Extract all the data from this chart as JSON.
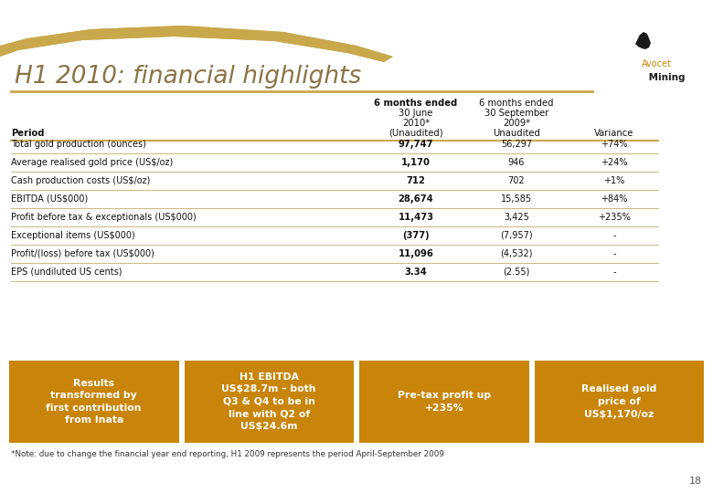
{
  "title": "H1 2010: financial highlights",
  "title_color": "#8B7345",
  "bg_color": "#FFFFFF",
  "slide_number": "18",
  "col_headers_line1": [
    "6 months ended",
    "6 months ended"
  ],
  "col_headers_line2": [
    "30 June",
    "30 September"
  ],
  "col_headers_line3": [
    "2010*",
    "2009*"
  ],
  "col_headers_line4": [
    "(Unaudited)",
    "Unaudited"
  ],
  "col_header4": "Variance",
  "row_label": "Period",
  "rows": [
    [
      "Total gold production (ounces)",
      "97,747",
      "56,297",
      "+74%"
    ],
    [
      "Average realised gold price (US$/oz)",
      "1,170",
      "946",
      "+24%"
    ],
    [
      "Cash production costs (US$/oz)",
      "712",
      "702",
      "+1%"
    ],
    [
      "EBITDA (US$000)",
      "28,674",
      "15,585",
      "+84%"
    ],
    [
      "Profit before tax & exceptionals (US$000)",
      "11,473",
      "3,425",
      "+235%"
    ],
    [
      "Exceptional items (US$000)",
      "(377)",
      "(7,957)",
      "-"
    ],
    [
      "Profit/(loss) before tax (US$000)",
      "11,096",
      "(4,532)",
      "-"
    ],
    [
      "EPS (undiluted US cents)",
      "3.34",
      "(2.55)",
      "-"
    ]
  ],
  "col1_bold": [
    true,
    true,
    false,
    true,
    true,
    false,
    true,
    false
  ],
  "highlight_boxes": [
    {
      "text": "Results\ntransformed by\nfirst contribution\nfrom Inata",
      "bg": "#C9850A",
      "text_color": "#FFFFFF"
    },
    {
      "text": "H1 EBITDA\nUS$28.7m – both\nQ3 & Q4 to be in\nline with Q2 of\nUS$24.6m",
      "bg": "#C9850A",
      "text_color": "#FFFFFF"
    },
    {
      "text": "Pre-tax profit up\n+235%",
      "bg": "#C9850A",
      "text_color": "#FFFFFF"
    },
    {
      "text": "Realised gold\nprice of\nUS$1,170/oz",
      "bg": "#C9850A",
      "text_color": "#FFFFFF"
    }
  ],
  "footnote": "*Note: due to change the financial year end reporting, H1 2009 represents the period April-September 2009",
  "separator_color": "#C9A84C",
  "table_line_color": "#C8B882",
  "gold_color": "#C9A84C"
}
